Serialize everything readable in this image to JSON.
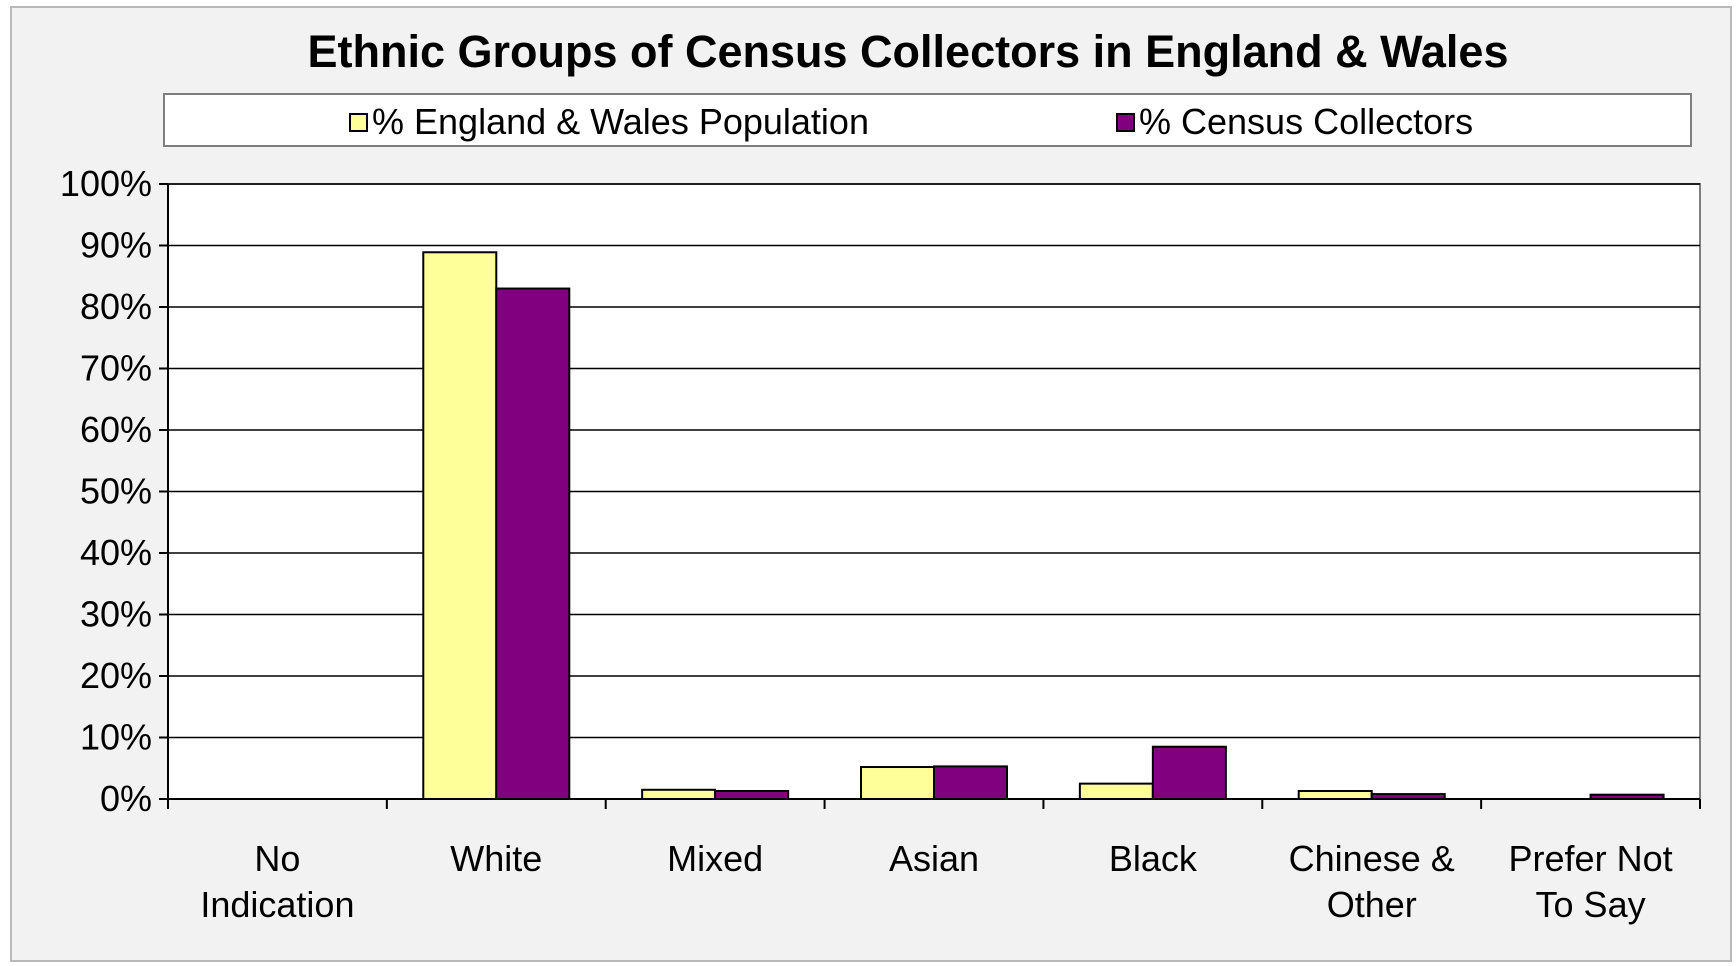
{
  "chart_data": {
    "type": "bar",
    "title": "Ethnic Groups of Census Collectors in England & Wales",
    "categories": [
      [
        "No",
        "Indication"
      ],
      [
        "White"
      ],
      [
        "Mixed"
      ],
      [
        "Asian"
      ],
      [
        "Black"
      ],
      [
        "Chinese &",
        "Other"
      ],
      [
        "Prefer Not",
        "To Say"
      ]
    ],
    "series": [
      {
        "name": "% England & Wales Population",
        "color": "#ffff99",
        "values": [
          0,
          88.9,
          1.5,
          5.2,
          2.5,
          1.3,
          0
        ]
      },
      {
        "name": "% Census Collectors",
        "color": "#800080",
        "values": [
          0,
          83.0,
          1.3,
          5.3,
          8.5,
          0.8,
          0.7
        ]
      }
    ],
    "ylim": [
      0,
      100
    ],
    "yticks": [
      0,
      10,
      20,
      30,
      40,
      50,
      60,
      70,
      80,
      90,
      100
    ],
    "ytick_labels": [
      "0%",
      "10%",
      "20%",
      "30%",
      "40%",
      "50%",
      "60%",
      "70%",
      "80%",
      "90%",
      "100%"
    ],
    "grid": true,
    "legend_position": "top"
  }
}
